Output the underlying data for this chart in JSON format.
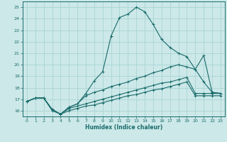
{
  "xlabel": "Humidex (Indice chaleur)",
  "bg_color": "#cce8e8",
  "grid_color": "#aad4d4",
  "line_color": "#1a6b6b",
  "xlim": [
    -0.5,
    23.5
  ],
  "ylim": [
    15.5,
    25.5
  ],
  "xticks": [
    0,
    1,
    2,
    3,
    4,
    5,
    6,
    7,
    8,
    9,
    10,
    11,
    12,
    13,
    14,
    15,
    16,
    17,
    18,
    19,
    20,
    21,
    22,
    23
  ],
  "yticks": [
    16,
    17,
    18,
    19,
    20,
    21,
    22,
    23,
    24,
    25
  ],
  "lines": [
    {
      "x": [
        0,
        1,
        2,
        3,
        4,
        5,
        6,
        7,
        8,
        9,
        10,
        11,
        12,
        13,
        14,
        15,
        16,
        17,
        18,
        19,
        20,
        21,
        22,
        23
      ],
      "y": [
        16.8,
        17.1,
        17.1,
        16.0,
        15.7,
        16.3,
        16.6,
        17.5,
        18.6,
        19.4,
        22.5,
        24.1,
        24.4,
        25.0,
        24.6,
        23.5,
        22.2,
        21.5,
        21.0,
        20.7,
        19.6,
        18.5,
        17.6,
        17.5
      ]
    },
    {
      "x": [
        0,
        1,
        2,
        3,
        4,
        5,
        6,
        7,
        8,
        9,
        10,
        11,
        12,
        13,
        14,
        15,
        16,
        17,
        18,
        19,
        20,
        21,
        22,
        23
      ],
      "y": [
        16.8,
        17.1,
        17.1,
        16.1,
        15.7,
        16.3,
        16.6,
        17.3,
        17.6,
        17.8,
        18.1,
        18.3,
        18.5,
        18.8,
        19.0,
        19.3,
        19.5,
        19.8,
        20.0,
        19.8,
        19.6,
        20.8,
        17.6,
        17.5
      ]
    },
    {
      "x": [
        0,
        1,
        2,
        3,
        4,
        5,
        6,
        7,
        8,
        9,
        10,
        11,
        12,
        13,
        14,
        15,
        16,
        17,
        18,
        19,
        20,
        21,
        22,
        23
      ],
      "y": [
        16.8,
        17.1,
        17.1,
        16.1,
        15.7,
        16.2,
        16.4,
        16.6,
        16.8,
        17.0,
        17.2,
        17.4,
        17.6,
        17.8,
        18.0,
        18.2,
        18.4,
        18.5,
        18.7,
        18.9,
        17.5,
        17.5,
        17.5,
        17.5
      ]
    },
    {
      "x": [
        0,
        1,
        2,
        3,
        4,
        5,
        6,
        7,
        8,
        9,
        10,
        11,
        12,
        13,
        14,
        15,
        16,
        17,
        18,
        19,
        20,
        21,
        22,
        23
      ],
      "y": [
        16.8,
        17.1,
        17.1,
        16.1,
        15.7,
        16.0,
        16.2,
        16.4,
        16.5,
        16.7,
        16.9,
        17.1,
        17.3,
        17.4,
        17.6,
        17.8,
        17.9,
        18.1,
        18.3,
        18.5,
        17.3,
        17.3,
        17.3,
        17.3
      ]
    }
  ]
}
